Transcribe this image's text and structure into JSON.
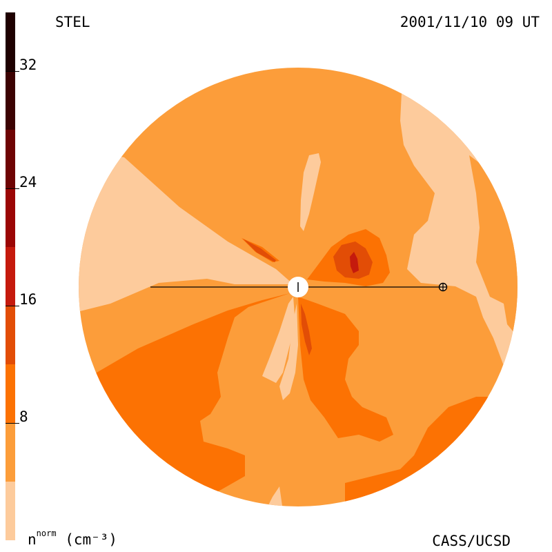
{
  "header": {
    "instrument": "STEL",
    "timestamp": "2001/11/10 09 UT"
  },
  "footer": {
    "quantity_main": "n",
    "quantity_sup": "norm",
    "quantity_unit": "(cm⁻³)",
    "credit": "CASS/UCSD"
  },
  "colorbar": {
    "ticks": [
      {
        "value": 8,
        "label": "8"
      },
      {
        "value": 16,
        "label": "16"
      },
      {
        "value": 24,
        "label": "24"
      },
      {
        "value": 32,
        "label": "32"
      }
    ],
    "range": [
      0,
      36
    ],
    "levels": [
      {
        "from": 0,
        "to": 4,
        "color": "#fdcb9c"
      },
      {
        "from": 4,
        "to": 8,
        "color": "#fc9d3a"
      },
      {
        "from": 8,
        "to": 12,
        "color": "#fc7203"
      },
      {
        "from": 12,
        "to": 16,
        "color": "#e24d06"
      },
      {
        "from": 16,
        "to": 20,
        "color": "#c51a0d"
      },
      {
        "from": 20,
        "to": 24,
        "color": "#9b0605"
      },
      {
        "from": 24,
        "to": 28,
        "color": "#6e0404"
      },
      {
        "from": 28,
        "to": 32,
        "color": "#3c0202"
      },
      {
        "from": 32,
        "to": 36,
        "color": "#1e0000"
      }
    ]
  },
  "map": {
    "sun_marker": "sun-disk",
    "earth_marker": "earth-symbol"
  }
}
